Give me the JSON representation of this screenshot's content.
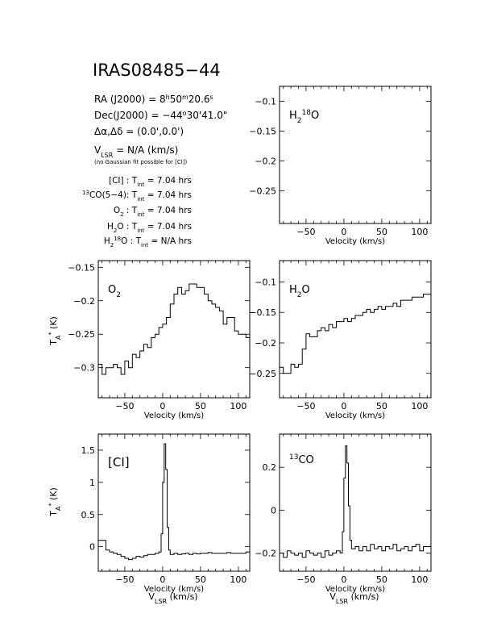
{
  "header": {
    "source_name": "IRAS08485−44",
    "ra_lead": "RA (J2000) =  8",
    "ra_h": "h",
    "ra_mid": "50",
    "ra_m": "m",
    "ra_sec": "20.6",
    "ra_s": "s",
    "dec_lead": "Dec(J2000) =  −44",
    "dec_deg": "o",
    "dec_rest": "30'41.0\"",
    "offset_line": "Δα,Δδ =  (0.0',0.0')",
    "vlsr_v": "V",
    "vlsr_sub": "LSR",
    "vlsr_rest": " = N/A  (km/s)",
    "fit_note": "(no Gaussian fit possible for [CI])",
    "integrations": [
      {
        "pre_sup": "",
        "label": "[CI] : T",
        "label_sub": "",
        "tint": "int",
        "value": " = 7.04 hrs"
      },
      {
        "pre_sup": "13",
        "label": "CO(5−4): T",
        "label_sub": "",
        "tint": "int",
        "value": " = 7.04 hrs"
      },
      {
        "pre_sup": "",
        "label": "O",
        "label_sub": "2",
        "label_after": " : T",
        "tint": "int",
        "value": " = 7.04 hrs"
      },
      {
        "pre_sup": "",
        "label": "H",
        "label_sub": "2",
        "label_after": "O : T",
        "tint": "int",
        "value": " = 7.04 hrs"
      },
      {
        "pre_sup": "",
        "label": "H",
        "label_sub": "2",
        "label_sup": "18",
        "label_after": "O : T",
        "tint": "int",
        "value": " = N/A  hrs"
      }
    ]
  },
  "axis_text": {
    "velocity_label": "Velocity (km/s)",
    "vlsr_label_v": "V",
    "vlsr_label_sub": "LSR",
    "vlsr_label_rest": " (km/s)",
    "ta_label_t": "T",
    "ta_label_sub": "A",
    "ta_label_sup": "*",
    "ta_label_rest": " (K)"
  },
  "chart_data": [
    {
      "id": "h218o",
      "type": "line",
      "title_parts": [
        "H",
        "2",
        "18",
        "O"
      ],
      "xlim": [
        -85,
        115
      ],
      "ylim": [
        -0.305,
        -0.075
      ],
      "xticks": [
        -50,
        0,
        50,
        100
      ],
      "yticks": [
        -0.1,
        -0.15,
        -0.2,
        -0.25
      ],
      "ytick_labels": [
        "−0.1",
        "−0.15",
        "−0.2",
        "−0.25"
      ],
      "xtick_labels": [
        "−50",
        "0",
        "50",
        "100"
      ],
      "series": []
    },
    {
      "id": "o2",
      "type": "line",
      "title_parts": [
        "O",
        "2"
      ],
      "xlim": [
        -85,
        115
      ],
      "ylim": [
        -0.345,
        -0.14
      ],
      "xticks": [
        -50,
        0,
        50,
        100
      ],
      "yticks": [
        -0.15,
        -0.2,
        -0.25,
        -0.3
      ],
      "ytick_labels": [
        "−0.15",
        "−0.2",
        "−0.25",
        "−0.3"
      ],
      "xtick_labels": [
        "−50",
        "0",
        "50",
        "100"
      ],
      "series": [
        {
          "x": [
            -85,
            -80,
            -75,
            -70,
            -65,
            -60,
            -55,
            -50,
            -45,
            -40,
            -35,
            -30,
            -25,
            -20,
            -15,
            -10,
            -5,
            0,
            5,
            10,
            15,
            20,
            25,
            30,
            35,
            40,
            45,
            50,
            55,
            60,
            65,
            70,
            75,
            80,
            85,
            90,
            95,
            100,
            105,
            110,
            115
          ],
          "y": [
            -0.295,
            -0.31,
            -0.3,
            -0.3,
            -0.295,
            -0.3,
            -0.31,
            -0.29,
            -0.3,
            -0.28,
            -0.285,
            -0.275,
            -0.265,
            -0.27,
            -0.255,
            -0.25,
            -0.24,
            -0.235,
            -0.225,
            -0.205,
            -0.19,
            -0.18,
            -0.19,
            -0.185,
            -0.175,
            -0.175,
            -0.18,
            -0.18,
            -0.19,
            -0.2,
            -0.205,
            -0.21,
            -0.215,
            -0.235,
            -0.225,
            -0.225,
            -0.245,
            -0.25,
            -0.25,
            -0.255,
            -0.27
          ]
        }
      ]
    },
    {
      "id": "h2o",
      "type": "line",
      "title_parts": [
        "H",
        "2",
        "O"
      ],
      "xlim": [
        -85,
        115
      ],
      "ylim": [
        -0.29,
        -0.065
      ],
      "xticks": [
        -50,
        0,
        50,
        100
      ],
      "yticks": [
        -0.1,
        -0.15,
        -0.2,
        -0.25
      ],
      "ytick_labels": [
        "−0.1",
        "−0.15",
        "−0.2",
        "−0.25"
      ],
      "xtick_labels": [
        "−50",
        "0",
        "50",
        "100"
      ],
      "series": [
        {
          "x": [
            -85,
            -80,
            -75,
            -70,
            -65,
            -60,
            -55,
            -50,
            -45,
            -40,
            -35,
            -30,
            -25,
            -20,
            -15,
            -10,
            -5,
            0,
            5,
            10,
            15,
            20,
            25,
            30,
            35,
            40,
            45,
            50,
            55,
            60,
            65,
            70,
            75,
            80,
            85,
            90,
            95,
            100,
            105,
            110,
            115
          ],
          "y": [
            -0.24,
            -0.25,
            -0.25,
            -0.235,
            -0.24,
            -0.235,
            -0.21,
            -0.185,
            -0.19,
            -0.19,
            -0.18,
            -0.175,
            -0.18,
            -0.17,
            -0.175,
            -0.165,
            -0.165,
            -0.16,
            -0.165,
            -0.16,
            -0.155,
            -0.155,
            -0.15,
            -0.145,
            -0.15,
            -0.145,
            -0.14,
            -0.145,
            -0.14,
            -0.14,
            -0.135,
            -0.14,
            -0.13,
            -0.13,
            -0.13,
            -0.125,
            -0.125,
            -0.125,
            -0.12,
            -0.12,
            -0.115
          ]
        }
      ]
    },
    {
      "id": "ci",
      "type": "line",
      "title_parts": [
        "[CI]"
      ],
      "xlim": [
        -85,
        115
      ],
      "ylim": [
        -0.38,
        1.75
      ],
      "xticks": [
        -50,
        0,
        50,
        100
      ],
      "yticks": [
        0,
        0.5,
        1,
        1.5
      ],
      "ytick_labels": [
        "0",
        "0.5",
        "1",
        "1.5"
      ],
      "xtick_labels": [
        "−50",
        "0",
        "50",
        "100"
      ],
      "series": [
        {
          "x": [
            -85,
            -80,
            -75,
            -70,
            -65,
            -60,
            -55,
            -50,
            -45,
            -40,
            -35,
            -30,
            -25,
            -20,
            -15,
            -10,
            -5,
            -2,
            0,
            2,
            4,
            6,
            8,
            10,
            15,
            20,
            25,
            30,
            35,
            40,
            45,
            50,
            55,
            60,
            65,
            70,
            75,
            80,
            85,
            90,
            95,
            100,
            105,
            110,
            115
          ],
          "y": [
            0.1,
            0.1,
            -0.05,
            -0.08,
            -0.1,
            -0.12,
            -0.15,
            -0.18,
            -0.2,
            -0.18,
            -0.15,
            -0.16,
            -0.14,
            -0.12,
            -0.12,
            -0.1,
            -0.08,
            0.2,
            1.0,
            1.6,
            1.2,
            0.3,
            -0.05,
            -0.12,
            -0.1,
            -0.12,
            -0.11,
            -0.1,
            -0.12,
            -0.1,
            -0.11,
            -0.1,
            -0.1,
            -0.09,
            -0.1,
            -0.1,
            -0.1,
            -0.1,
            -0.09,
            -0.1,
            -0.1,
            -0.1,
            -0.1,
            -0.08,
            -0.1
          ]
        }
      ]
    },
    {
      "id": "co13",
      "type": "line",
      "title_parts": [
        "13",
        "CO"
      ],
      "xlim": [
        -85,
        115
      ],
      "ylim": [
        -0.285,
        0.355
      ],
      "xticks": [
        -50,
        0,
        50,
        100
      ],
      "yticks": [
        0,
        0.2,
        -0.2
      ],
      "ytick_labels": [
        "0",
        "0.2",
        "−0.2"
      ],
      "xtick_labels": [
        "−50",
        "0",
        "50",
        "100"
      ],
      "series": [
        {
          "x": [
            -85,
            -80,
            -75,
            -70,
            -65,
            -60,
            -55,
            -50,
            -45,
            -40,
            -35,
            -30,
            -25,
            -20,
            -15,
            -10,
            -5,
            -2,
            0,
            2,
            4,
            6,
            8,
            10,
            15,
            20,
            25,
            30,
            35,
            40,
            45,
            50,
            55,
            60,
            65,
            70,
            75,
            80,
            85,
            90,
            95,
            100,
            105,
            110,
            115
          ],
          "y": [
            -0.2,
            -0.22,
            -0.19,
            -0.2,
            -0.21,
            -0.2,
            -0.22,
            -0.19,
            -0.2,
            -0.21,
            -0.2,
            -0.22,
            -0.19,
            -0.21,
            -0.2,
            -0.19,
            -0.2,
            -0.1,
            0.15,
            0.3,
            0.22,
            0.02,
            -0.14,
            -0.18,
            -0.17,
            -0.19,
            -0.17,
            -0.19,
            -0.16,
            -0.18,
            -0.17,
            -0.19,
            -0.17,
            -0.18,
            -0.16,
            -0.19,
            -0.18,
            -0.17,
            -0.19,
            -0.17,
            -0.16,
            -0.19,
            -0.17,
            -0.17,
            -0.15
          ]
        }
      ]
    }
  ]
}
